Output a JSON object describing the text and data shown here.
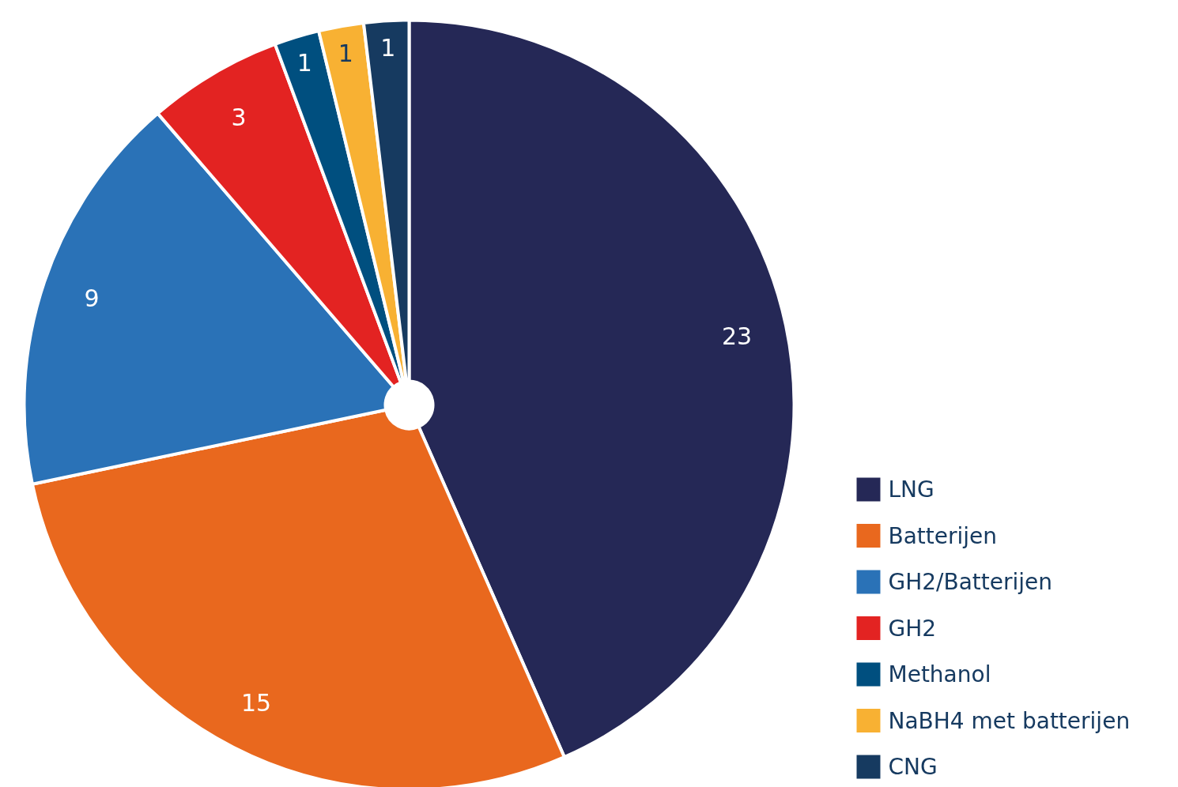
{
  "chart_data": {
    "type": "pie",
    "categories": [
      "LNG",
      "Batterijen",
      "GH2/Batterijen",
      "GH2",
      "Methanol",
      "NaBH4 met batterijen",
      "CNG"
    ],
    "values": [
      23,
      15,
      9,
      3,
      1,
      1,
      1
    ],
    "colors": [
      "#252856",
      "#e9681e",
      "#2a72b7",
      "#e32322",
      "#004f7f",
      "#f8b133",
      "#163a60"
    ],
    "data_labels": true,
    "legend": "bottom right"
  }
}
